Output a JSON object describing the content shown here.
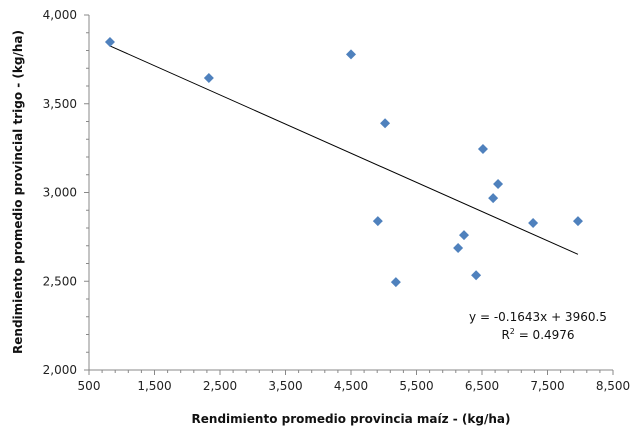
{
  "chart_data": {
    "type": "scatter",
    "title": "",
    "xlabel": "Rendimiento promedio provincia maíz - (kg/ha)",
    "ylabel": "Rendimiento promedio provincial trigo - (kg/ha)",
    "xlim": [
      500,
      8500
    ],
    "ylim": [
      2000,
      4000
    ],
    "xticks": [
      500,
      1500,
      2500,
      3500,
      4500,
      5500,
      6500,
      7500,
      8500
    ],
    "xtick_labels": [
      "500",
      "1,500",
      "2,500",
      "3,500",
      "4,500",
      "5,500",
      "6,500",
      "7,500",
      "8,500"
    ],
    "yticks": [
      2000,
      2500,
      3000,
      3500,
      4000
    ],
    "ytick_labels": [
      "2,000",
      "2,500",
      "3,000",
      "3,500",
      "4,000"
    ],
    "grid": false,
    "marker_color": "#4F81BD",
    "points": [
      {
        "x": 820,
        "y": 3848
      },
      {
        "x": 2330,
        "y": 3645
      },
      {
        "x": 4500,
        "y": 3778
      },
      {
        "x": 5020,
        "y": 3390
      },
      {
        "x": 6515,
        "y": 3245
      },
      {
        "x": 6745,
        "y": 3048
      },
      {
        "x": 6670,
        "y": 2968
      },
      {
        "x": 4910,
        "y": 2839
      },
      {
        "x": 6225,
        "y": 2760
      },
      {
        "x": 6135,
        "y": 2687
      },
      {
        "x": 7280,
        "y": 2828
      },
      {
        "x": 7965,
        "y": 2839
      },
      {
        "x": 6410,
        "y": 2534
      },
      {
        "x": 5185,
        "y": 2495
      }
    ],
    "trendline": {
      "slope": -0.1643,
      "intercept": 3960.5,
      "x_range": [
        820,
        7965
      ]
    },
    "equation_label": "y = -0.1643x + 3960.5",
    "r2_prefix": "R",
    "r2_sup": "2",
    "r2_value": " = 0.4976"
  }
}
